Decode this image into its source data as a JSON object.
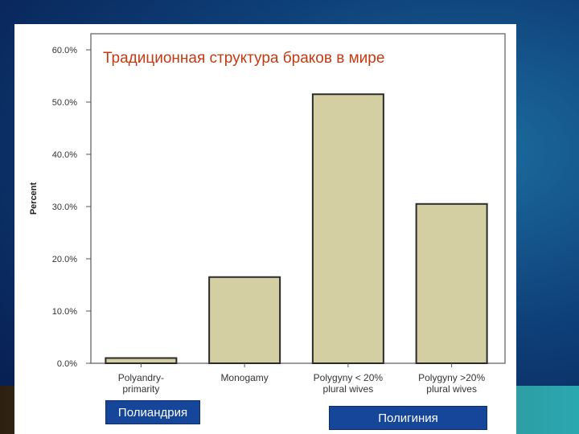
{
  "colors": {
    "bar_fill": "#d3cfa2",
    "bar_stroke": "#2b2b2b",
    "title": "#c43a12",
    "caption_bg": "#16469a"
  },
  "captions": {
    "left": "Полиандрия",
    "right": "Полигиния"
  },
  "chart_data": {
    "type": "bar",
    "title": "Традиционная структура браков в мире",
    "ylabel": "Percent",
    "xlabel": "",
    "ylim": [
      0,
      60
    ],
    "yticks": [
      0,
      10,
      20,
      30,
      40,
      50,
      60
    ],
    "ytick_labels": [
      "0.0%",
      "10.0%",
      "20.0%",
      "30.0%",
      "40.0%",
      "50.0%",
      "60.0%"
    ],
    "grid": false,
    "categories": [
      [
        "Polyandry-",
        "primarity"
      ],
      [
        "Monogamy"
      ],
      [
        "Polygyny < 20%",
        "plural wives"
      ],
      [
        "Polygyny >20%",
        "plural wives"
      ]
    ],
    "values": [
      1.0,
      16.5,
      51.5,
      30.5
    ]
  }
}
